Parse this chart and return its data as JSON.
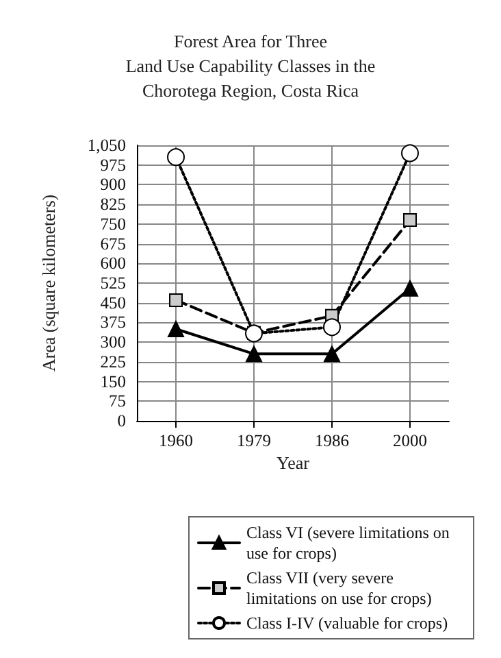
{
  "chart_data": {
    "type": "line",
    "title": "Forest Area for Three\nLand Use Capability Classes in the\nChorotega Region, Costa Rica",
    "xlabel": "Year",
    "ylabel": "Area (square kilometers)",
    "categories": [
      "1960",
      "1979",
      "1986",
      "2000"
    ],
    "series": [
      {
        "name": "Class VI (severe limitations on use for crops)",
        "color": "#000000",
        "marker": "triangle",
        "line_style": "solid",
        "values": [
          350,
          255,
          255,
          505
        ]
      },
      {
        "name": "Class VII (very severe limitations on use for crops)",
        "color": "#000000",
        "marker": "square",
        "line_style": "dashed",
        "values": [
          460,
          335,
          400,
          765
        ]
      },
      {
        "name": "Class I-IV (valuable for crops)",
        "color": "#000000",
        "marker": "circle",
        "line_style": "dotted",
        "values": [
          1005,
          333,
          357,
          1020
        ]
      }
    ],
    "ylim": [
      0,
      1050
    ],
    "yticks": [
      0,
      75,
      150,
      225,
      300,
      375,
      450,
      525,
      600,
      675,
      750,
      825,
      900,
      975,
      {
        "value": 1050,
        "label": "1,050"
      }
    ],
    "grid": true,
    "legend": "bottom"
  }
}
